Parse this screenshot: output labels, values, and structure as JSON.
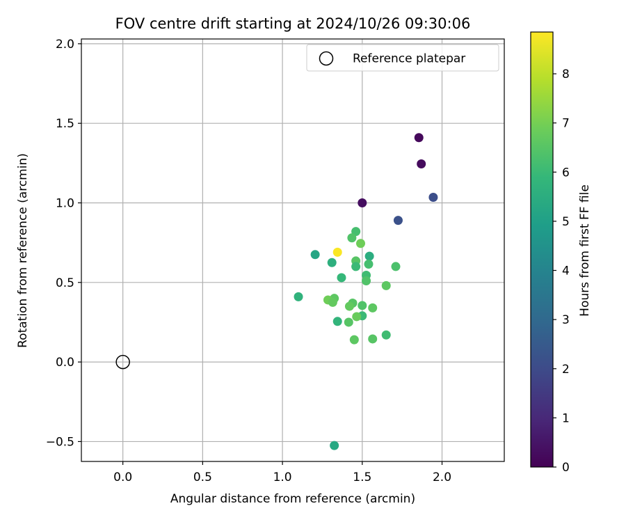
{
  "chart_data": {
    "type": "scatter",
    "title": "FOV centre drift starting at 2024/10/26 09:30:06",
    "xlabel": "Angular distance from reference (arcmin)",
    "ylabel": "Rotation from reference (arcmin)",
    "xlim": [
      -0.26,
      2.39
    ],
    "ylim": [
      -0.625,
      2.03
    ],
    "x_ticks": [
      0.0,
      0.5,
      1.0,
      1.5,
      2.0
    ],
    "x_tick_labels": [
      "0.0",
      "0.5",
      "1.0",
      "1.5",
      "2.0"
    ],
    "y_ticks": [
      -0.5,
      0.0,
      0.5,
      1.0,
      1.5,
      2.0
    ],
    "y_tick_labels": [
      "−0.5",
      "0.0",
      "0.5",
      "1.0",
      "1.5",
      "2.0"
    ],
    "grid": true,
    "legend": {
      "position": "top-right",
      "entries": [
        "Reference platepar"
      ]
    },
    "reference_point": {
      "label": "Reference platepar",
      "x": 0.0,
      "y": 0.0,
      "marker": "open-circle"
    },
    "colorbar": {
      "label": "Hours from first FF file",
      "colormap": "viridis",
      "min": 0,
      "max": 8.85,
      "ticks": [
        0,
        1,
        2,
        3,
        4,
        5,
        6,
        7,
        8
      ],
      "tick_labels": [
        "0",
        "1",
        "2",
        "3",
        "4",
        "5",
        "6",
        "7",
        "8"
      ]
    },
    "points": [
      {
        "x": 1.855,
        "y": 1.41,
        "hours": 0.2
      },
      {
        "x": 1.87,
        "y": 1.245,
        "hours": 0.25
      },
      {
        "x": 1.5,
        "y": 1.0,
        "hours": 0.3
      },
      {
        "x": 1.945,
        "y": 1.035,
        "hours": 2.1
      },
      {
        "x": 1.725,
        "y": 0.89,
        "hours": 2.2
      },
      {
        "x": 1.46,
        "y": 0.82,
        "hours": 6.2
      },
      {
        "x": 1.435,
        "y": 0.78,
        "hours": 6.4
      },
      {
        "x": 1.49,
        "y": 0.745,
        "hours": 6.9
      },
      {
        "x": 1.345,
        "y": 0.69,
        "hours": 8.8
      },
      {
        "x": 1.205,
        "y": 0.675,
        "hours": 5.2
      },
      {
        "x": 1.545,
        "y": 0.665,
        "hours": 5.5
      },
      {
        "x": 1.31,
        "y": 0.625,
        "hours": 5.6
      },
      {
        "x": 1.46,
        "y": 0.635,
        "hours": 6.5
      },
      {
        "x": 1.46,
        "y": 0.6,
        "hours": 6.0
      },
      {
        "x": 1.54,
        "y": 0.615,
        "hours": 6.2
      },
      {
        "x": 1.71,
        "y": 0.6,
        "hours": 6.3
      },
      {
        "x": 1.525,
        "y": 0.545,
        "hours": 6.1
      },
      {
        "x": 1.37,
        "y": 0.53,
        "hours": 5.9
      },
      {
        "x": 1.525,
        "y": 0.51,
        "hours": 6.4
      },
      {
        "x": 1.65,
        "y": 0.48,
        "hours": 6.6
      },
      {
        "x": 1.1,
        "y": 0.41,
        "hours": 5.7
      },
      {
        "x": 1.325,
        "y": 0.4,
        "hours": 6.6
      },
      {
        "x": 1.285,
        "y": 0.39,
        "hours": 6.9
      },
      {
        "x": 1.315,
        "y": 0.375,
        "hours": 6.7
      },
      {
        "x": 1.44,
        "y": 0.37,
        "hours": 6.5
      },
      {
        "x": 1.42,
        "y": 0.35,
        "hours": 6.7
      },
      {
        "x": 1.5,
        "y": 0.355,
        "hours": 6.4
      },
      {
        "x": 1.565,
        "y": 0.34,
        "hours": 6.6
      },
      {
        "x": 1.5,
        "y": 0.29,
        "hours": 6.0
      },
      {
        "x": 1.465,
        "y": 0.285,
        "hours": 6.8
      },
      {
        "x": 1.345,
        "y": 0.255,
        "hours": 5.8
      },
      {
        "x": 1.415,
        "y": 0.25,
        "hours": 6.5
      },
      {
        "x": 1.65,
        "y": 0.17,
        "hours": 6.1
      },
      {
        "x": 1.565,
        "y": 0.145,
        "hours": 6.5
      },
      {
        "x": 1.45,
        "y": 0.14,
        "hours": 6.6
      },
      {
        "x": 1.325,
        "y": -0.525,
        "hours": 5.3
      }
    ]
  }
}
